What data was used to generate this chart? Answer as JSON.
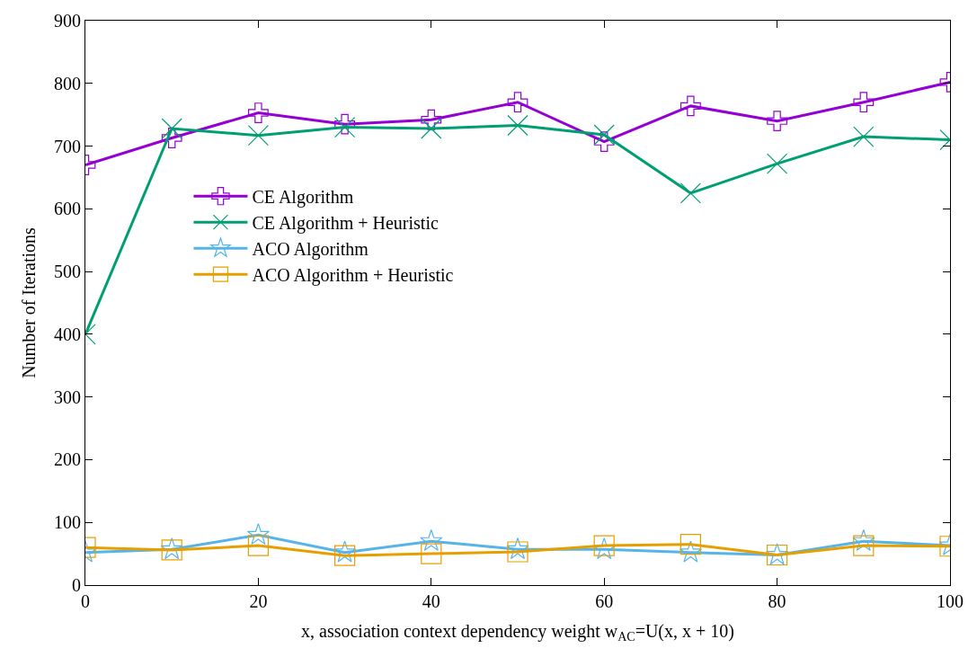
{
  "chart_data": {
    "type": "line",
    "xlabel": "x, association context dependency weight w$_{AC}$=U(x, x + 10)",
    "ylabel": "Number of Iterations",
    "x": [
      0,
      10,
      20,
      30,
      40,
      50,
      60,
      70,
      80,
      90,
      100
    ],
    "xlim": [
      0,
      100
    ],
    "xticks": [
      0,
      20,
      40,
      60,
      80,
      100
    ],
    "ylim": [
      0,
      900
    ],
    "yticks": [
      0,
      100,
      200,
      300,
      400,
      500,
      600,
      700,
      800,
      900
    ],
    "legend": "left",
    "line_style": "solid",
    "series": [
      {
        "name": "CE Algorithm",
        "color": "#9400d3",
        "marker": "cross",
        "values": [
          670,
          713,
          753,
          735,
          742,
          770,
          707,
          764,
          740,
          770,
          802
        ]
      },
      {
        "name": "CE Algorithm + Heuristic",
        "color": "#009e73",
        "marker": "x",
        "values": [
          400,
          728,
          717,
          730,
          728,
          733,
          718,
          625,
          672,
          715,
          710
        ]
      },
      {
        "name": "ACO Algorithm",
        "color": "#56b4e9",
        "marker": "star",
        "values": [
          52,
          57,
          80,
          52,
          70,
          57,
          57,
          52,
          48,
          70,
          63
        ]
      },
      {
        "name": "ACO Algorithm + Heuristic",
        "color": "#e69f00",
        "marker": "square",
        "values": [
          60,
          56,
          63,
          47,
          50,
          53,
          63,
          65,
          48,
          63,
          62
        ]
      }
    ]
  }
}
